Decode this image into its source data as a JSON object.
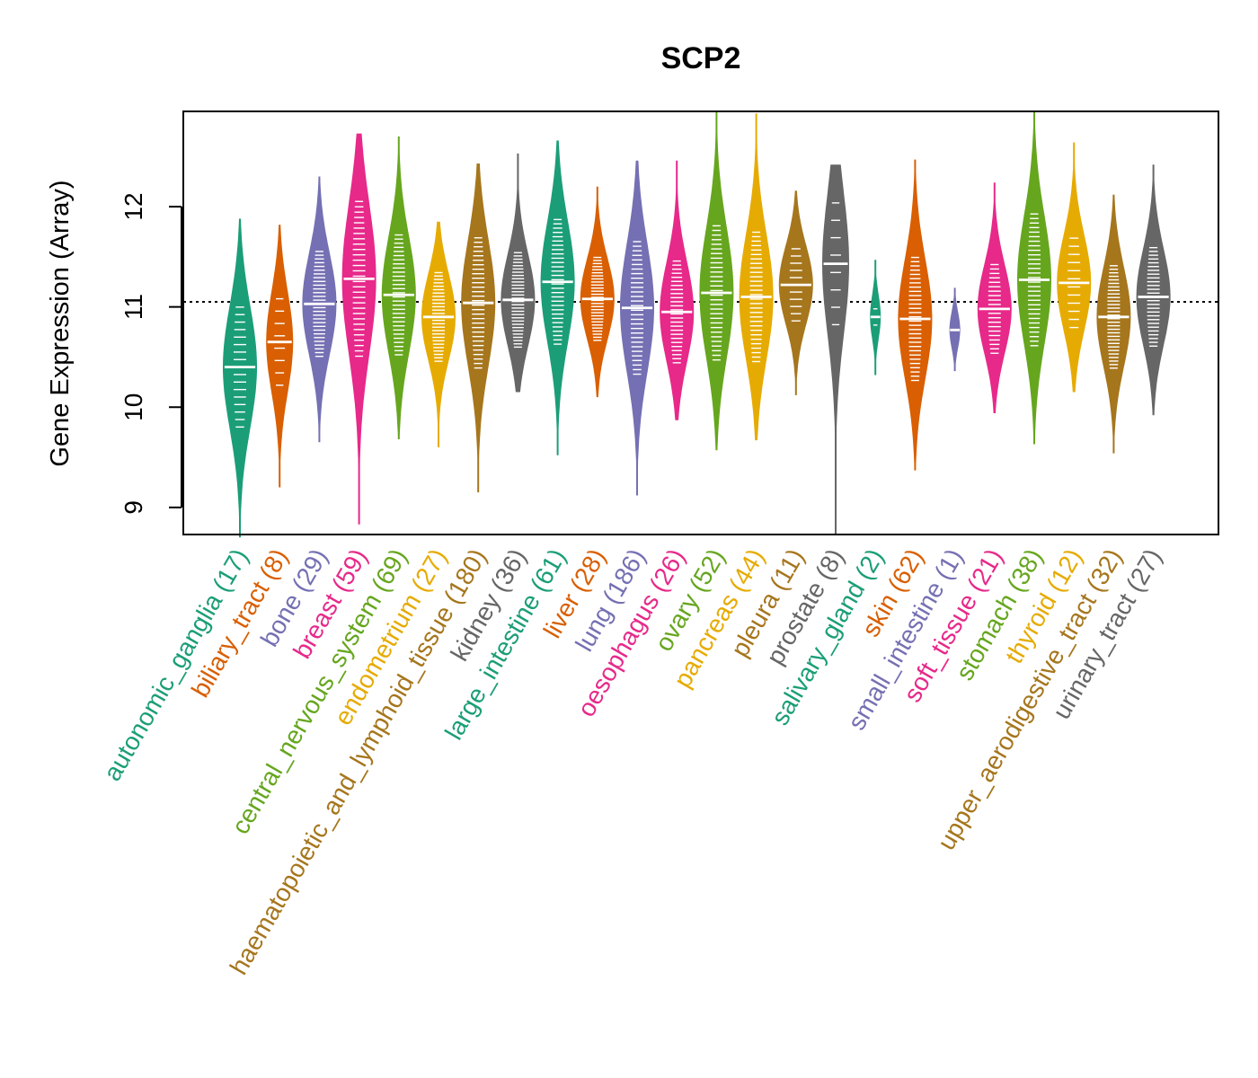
{
  "chart_data": {
    "type": "violin",
    "title": "SCP2",
    "xlabel": "",
    "ylabel": "Gene Expression (Array)",
    "ylim": [
      8.73,
      12.95
    ],
    "yticks": [
      9,
      10,
      11,
      12
    ],
    "reference_line": 11.05,
    "categories": [
      {
        "label": "autonomic_ganglia (17)",
        "color": "#1B9E77",
        "median": 10.4,
        "min": 8.7,
        "max": 11.88
      },
      {
        "label": "biliary_tract (8)",
        "color": "#D95F02",
        "median": 10.65,
        "min": 9.2,
        "max": 11.82
      },
      {
        "label": "bone (29)",
        "color": "#7570B3",
        "median": 11.03,
        "min": 9.65,
        "max": 12.3
      },
      {
        "label": "breast (59)",
        "color": "#E7298A",
        "median": 11.28,
        "min": 8.83,
        "max": 12.73
      },
      {
        "label": "central_nervous_system (69)",
        "color": "#66A61E",
        "median": 11.12,
        "min": 9.68,
        "max": 12.7
      },
      {
        "label": "endometrium (27)",
        "color": "#E6AB02",
        "median": 10.9,
        "min": 9.6,
        "max": 11.85
      },
      {
        "label": "haematopoietic_and_lymphoid_tissue (180)",
        "color": "#A6761D",
        "median": 11.04,
        "min": 9.15,
        "max": 12.43
      },
      {
        "label": "kidney (36)",
        "color": "#666666",
        "median": 11.07,
        "min": 10.15,
        "max": 12.53
      },
      {
        "label": "large_intestine (61)",
        "color": "#1B9E77",
        "median": 11.25,
        "min": 9.52,
        "max": 12.66
      },
      {
        "label": "liver (28)",
        "color": "#D95F02",
        "median": 11.08,
        "min": 10.1,
        "max": 12.2
      },
      {
        "label": "lung (186)",
        "color": "#7570B3",
        "median": 10.99,
        "min": 9.12,
        "max": 12.46
      },
      {
        "label": "oesophagus (26)",
        "color": "#E7298A",
        "median": 10.95,
        "min": 9.87,
        "max": 12.46
      },
      {
        "label": "ovary (52)",
        "color": "#66A61E",
        "median": 11.14,
        "min": 9.57,
        "max": 12.95
      },
      {
        "label": "pancreas (44)",
        "color": "#E6AB02",
        "median": 11.1,
        "min": 9.67,
        "max": 12.93
      },
      {
        "label": "pleura (11)",
        "color": "#A6761D",
        "median": 11.22,
        "min": 10.12,
        "max": 12.16
      },
      {
        "label": "prostate (8)",
        "color": "#666666",
        "median": 11.43,
        "min": 8.73,
        "max": 12.42
      },
      {
        "label": "salivary_gland (2)",
        "color": "#1B9E77",
        "median": 10.9,
        "min": 10.32,
        "max": 11.47
      },
      {
        "label": "skin (62)",
        "color": "#D95F02",
        "median": 10.88,
        "min": 9.37,
        "max": 12.47
      },
      {
        "label": "small_intestine (1)",
        "color": "#7570B3",
        "median": 10.77,
        "min": 10.36,
        "max": 11.19
      },
      {
        "label": "soft_tissue (21)",
        "color": "#E7298A",
        "median": 10.98,
        "min": 9.94,
        "max": 12.24
      },
      {
        "label": "stomach (38)",
        "color": "#66A61E",
        "median": 11.27,
        "min": 9.63,
        "max": 12.95
      },
      {
        "label": "thyroid (12)",
        "color": "#E6AB02",
        "median": 11.24,
        "min": 10.15,
        "max": 12.64
      },
      {
        "label": "upper_aerodigestive_tract (32)",
        "color": "#A6761D",
        "median": 10.9,
        "min": 9.54,
        "max": 12.12
      },
      {
        "label": "urinary_tract (27)",
        "color": "#666666",
        "median": 11.1,
        "min": 9.92,
        "max": 12.42
      }
    ]
  }
}
